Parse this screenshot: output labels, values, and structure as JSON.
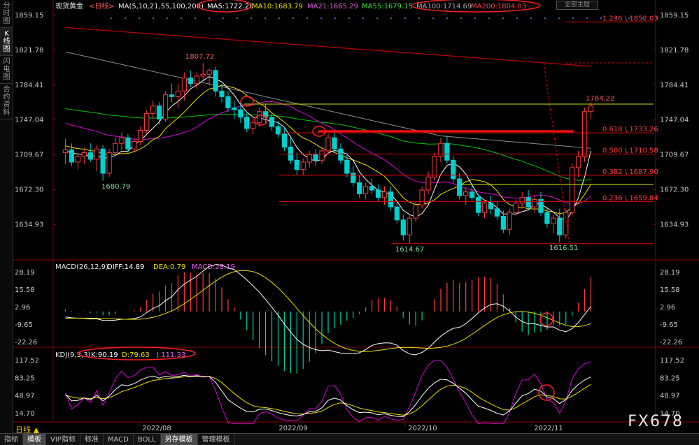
{
  "sidebar": {
    "items": [
      {
        "label": "分时图",
        "chars": [
          "分",
          "时",
          "图"
        ],
        "active": false
      },
      {
        "label": "K线图",
        "chars": [
          "K",
          "线",
          "图"
        ],
        "active": true
      },
      {
        "label": "闪电图",
        "chars": [
          "闪",
          "电",
          "图"
        ],
        "active": false
      },
      {
        "label": "合约资料",
        "chars": [
          "合",
          "约",
          "资",
          "料"
        ],
        "active": false
      }
    ]
  },
  "header": {
    "instrument": "现货黄金",
    "period": "<日线>",
    "ma_params": "MA(5,10,21,55,100,200)",
    "ma5": "MA5:1722.20",
    "ma10": "MA10:1683.79",
    "ma21": "MA21:1665.29",
    "ma55": "MA55:1679.15",
    "ma100": "MA100:1714.69",
    "ma200": "MA200:1804.03",
    "theme_button": "全部主题"
  },
  "macd_header": {
    "params": "MACD(26,12,9)",
    "diff": "DIFF:14.89",
    "dea": "DEA:0.79",
    "macd": "MACD:28.19"
  },
  "kdj_header": {
    "params": "KDJ(9,3,3)",
    "k": "K:90.19",
    "d": "D:79.63",
    "j": "J:111.33"
  },
  "price_axis": [
    "1859.15",
    "1821.78",
    "1784.41",
    "1747.04",
    "1709.67",
    "1672.30",
    "1634.93"
  ],
  "macd_axis": [
    "28.19",
    "15.58",
    "2.96",
    "-9.65",
    "-22.26"
  ],
  "kdj_axis": [
    "117.52",
    "83.25",
    "48.97",
    "14.70"
  ],
  "date_axis": [
    "2022/08",
    "2022/09",
    "2022/10",
    "2022/11"
  ],
  "annotations": {
    "high1": "1807.72",
    "low1": "1680.79",
    "low2": "1614.67",
    "low3": "1616.51",
    "high_recent": "1764.22"
  },
  "fib_levels": [
    {
      "label": "1.236 \\ 1852.03",
      "price": 1852.03
    },
    {
      "label": "0.618 \\ 1733.26",
      "price": 1733.26
    },
    {
      "label": "0.500 \\ 1710.58",
      "price": 1710.58
    },
    {
      "label": "0.382 \\ 1687.90",
      "price": 1687.9
    },
    {
      "label": "0.236 \\ 1659.84",
      "price": 1659.84
    }
  ],
  "bottom_tabs": [
    {
      "label": "指标",
      "active": false
    },
    {
      "label": "模板",
      "active": true
    },
    {
      "label": "VIP指标",
      "active": false
    },
    {
      "label": "标准",
      "active": false
    },
    {
      "label": "MACD",
      "active": false
    },
    {
      "label": "BOLL",
      "active": false
    },
    {
      "label": "另存模板",
      "active": true
    },
    {
      "label": "管理模板",
      "active": false
    }
  ],
  "period_label": "日线 ▲",
  "brand": "FX678",
  "colors": {
    "up": "#ff3c3c",
    "down": "#00d0d0",
    "ma5": "#ffffff",
    "ma10": "#e8e000",
    "ma21": "#d800d8",
    "ma55": "#00c800",
    "ma100": "#8c8c8c",
    "ma200": "#c00000"
  },
  "chart_data": {
    "type": "candlestick",
    "price_range": [
      1610,
      1862
    ],
    "candles": [
      [
        1712,
        1727,
        1700,
        1715
      ],
      [
        1715,
        1722,
        1698,
        1702
      ],
      [
        1702,
        1712,
        1694,
        1708
      ],
      [
        1708,
        1718,
        1700,
        1712
      ],
      [
        1712,
        1722,
        1702,
        1705
      ],
      [
        1705,
        1720,
        1692,
        1716
      ],
      [
        1716,
        1720,
        1682,
        1690
      ],
      [
        1690,
        1716,
        1686,
        1712
      ],
      [
        1712,
        1728,
        1708,
        1722
      ],
      [
        1722,
        1734,
        1715,
        1728
      ],
      [
        1728,
        1732,
        1712,
        1716
      ],
      [
        1716,
        1728,
        1712,
        1724
      ],
      [
        1724,
        1740,
        1720,
        1736
      ],
      [
        1736,
        1758,
        1732,
        1754
      ],
      [
        1754,
        1768,
        1748,
        1762
      ],
      [
        1762,
        1766,
        1742,
        1748
      ],
      [
        1748,
        1778,
        1745,
        1774
      ],
      [
        1774,
        1786,
        1766,
        1772
      ],
      [
        1772,
        1786,
        1760,
        1778
      ],
      [
        1778,
        1798,
        1768,
        1792
      ],
      [
        1792,
        1800,
        1782,
        1786
      ],
      [
        1786,
        1798,
        1780,
        1794
      ],
      [
        1794,
        1808,
        1790,
        1796
      ],
      [
        1796,
        1802,
        1784,
        1800
      ],
      [
        1800,
        1804,
        1772,
        1778
      ],
      [
        1778,
        1786,
        1766,
        1772
      ],
      [
        1772,
        1778,
        1756,
        1760
      ],
      [
        1760,
        1768,
        1748,
        1758
      ],
      [
        1758,
        1766,
        1744,
        1750
      ],
      [
        1750,
        1756,
        1734,
        1738
      ],
      [
        1738,
        1750,
        1732,
        1744
      ],
      [
        1744,
        1760,
        1740,
        1756
      ],
      [
        1756,
        1764,
        1744,
        1750
      ],
      [
        1750,
        1754,
        1736,
        1740
      ],
      [
        1740,
        1746,
        1728,
        1732
      ],
      [
        1732,
        1740,
        1714,
        1718
      ],
      [
        1718,
        1728,
        1700,
        1704
      ],
      [
        1704,
        1712,
        1688,
        1694
      ],
      [
        1694,
        1706,
        1688,
        1702
      ],
      [
        1702,
        1714,
        1696,
        1710
      ],
      [
        1710,
        1716,
        1698,
        1704
      ],
      [
        1704,
        1718,
        1700,
        1714
      ],
      [
        1714,
        1732,
        1710,
        1728
      ],
      [
        1728,
        1736,
        1712,
        1716
      ],
      [
        1716,
        1722,
        1700,
        1704
      ],
      [
        1704,
        1712,
        1686,
        1690
      ],
      [
        1690,
        1698,
        1676,
        1680
      ],
      [
        1680,
        1688,
        1664,
        1668
      ],
      [
        1668,
        1680,
        1662,
        1676
      ],
      [
        1676,
        1684,
        1668,
        1672
      ],
      [
        1672,
        1678,
        1660,
        1664
      ],
      [
        1664,
        1676,
        1656,
        1670
      ],
      [
        1670,
        1676,
        1650,
        1654
      ],
      [
        1654,
        1660,
        1636,
        1640
      ],
      [
        1640,
        1646,
        1618,
        1624
      ],
      [
        1624,
        1646,
        1614,
        1642
      ],
      [
        1642,
        1660,
        1638,
        1656
      ],
      [
        1656,
        1676,
        1652,
        1672
      ],
      [
        1672,
        1692,
        1668,
        1686
      ],
      [
        1686,
        1712,
        1682,
        1708
      ],
      [
        1708,
        1728,
        1702,
        1722
      ],
      [
        1722,
        1730,
        1700,
        1704
      ],
      [
        1704,
        1708,
        1680,
        1684
      ],
      [
        1684,
        1690,
        1662,
        1666
      ],
      [
        1666,
        1674,
        1656,
        1670
      ],
      [
        1670,
        1676,
        1660,
        1664
      ],
      [
        1664,
        1668,
        1644,
        1648
      ],
      [
        1648,
        1662,
        1642,
        1658
      ],
      [
        1658,
        1666,
        1646,
        1652
      ],
      [
        1652,
        1660,
        1640,
        1644
      ],
      [
        1644,
        1650,
        1626,
        1630
      ],
      [
        1630,
        1652,
        1624,
        1648
      ],
      [
        1648,
        1662,
        1644,
        1658
      ],
      [
        1658,
        1670,
        1652,
        1664
      ],
      [
        1664,
        1672,
        1650,
        1654
      ],
      [
        1654,
        1666,
        1648,
        1662
      ],
      [
        1662,
        1670,
        1644,
        1648
      ],
      [
        1648,
        1654,
        1632,
        1636
      ],
      [
        1636,
        1646,
        1626,
        1642
      ],
      [
        1642,
        1652,
        1616,
        1624
      ],
      [
        1624,
        1652,
        1620,
        1648
      ],
      [
        1648,
        1700,
        1644,
        1696
      ],
      [
        1696,
        1714,
        1686,
        1708
      ],
      [
        1708,
        1760,
        1702,
        1756
      ],
      [
        1756,
        1766,
        1748,
        1762
      ]
    ]
  }
}
